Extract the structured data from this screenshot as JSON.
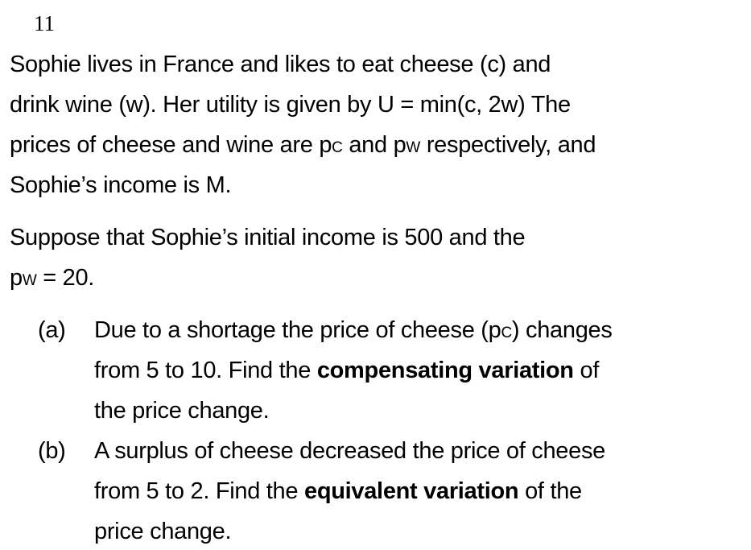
{
  "question_number": "11",
  "intro": {
    "l1": "Sophie lives in France and likes to eat cheese (c) and",
    "l2": "drink wine (w). Her utility is given by  U = min(c, 2w)  The",
    "l3a": "prices of cheese and wine are p",
    "l3sub1": "C",
    "l3b": " and p",
    "l3sub2": "W",
    "l3c": " respectively, and",
    "l4": "Sophie’s income is M."
  },
  "setup": {
    "l1": "Suppose that Sophie’s initial income is 500 and the",
    "l2a": "p",
    "l2sub": "W",
    "l2b": " = 20."
  },
  "parts": [
    {
      "label": "(a)",
      "l1a": "Due to a shortage the price of cheese (p",
      "l1sub": "C",
      "l1b": ") changes",
      "l2a": "from 5 to 10. Find the ",
      "l2bold": "compensating variation",
      "l2b": " of",
      "l3": "the price change."
    },
    {
      "label": "(b)",
      "l1": "A surplus of cheese decreased the price of cheese",
      "l2a": "from 5 to 2. Find the ",
      "l2bold": "equivalent variation",
      "l2b": " of the",
      "l3": "price change."
    }
  ]
}
